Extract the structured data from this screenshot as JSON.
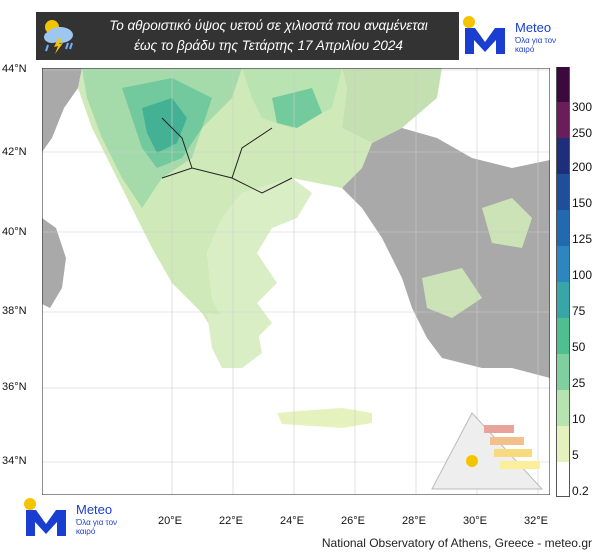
{
  "banner": {
    "title_line1": "Το αθροιστικό ύψος υετού σε χιλιοστά που αναμένεται",
    "title_line2": "έως το βράδυ της Τετάρτης 17 Απριλίου 2024",
    "icon": "rain-cloud-icon"
  },
  "brand": {
    "name": "Meteo",
    "tagline": "Όλα για τον καιρό",
    "logo_color": "#1a3fd0",
    "sun_color": "#f5c400"
  },
  "map": {
    "latitude_labels": [
      "44°N",
      "42°N",
      "40°N",
      "38°N",
      "36°N",
      "34°N"
    ],
    "longitude_labels": [
      "20°E",
      "22°E",
      "24°E",
      "26°E",
      "28°E",
      "30°E",
      "32°E"
    ],
    "sea_color": "#ffffff",
    "outside_land_color": "#a9a9a9"
  },
  "colorbar": {
    "labels": [
      "300",
      "250",
      "200",
      "150",
      "125",
      "100",
      "75",
      "50",
      "25",
      "10",
      "5",
      "0.2"
    ],
    "colors": [
      "#3a0a3f",
      "#6a1d5a",
      "#1e2e7a",
      "#1f4f9a",
      "#2269b0",
      "#2e86bf",
      "#38a6a6",
      "#4fbf8f",
      "#7fd09e",
      "#b6e3b0",
      "#e6f2bd",
      "#ffffff"
    ]
  },
  "footer": {
    "credit": "National Observatory of Athens, Greece - meteo.gr"
  }
}
